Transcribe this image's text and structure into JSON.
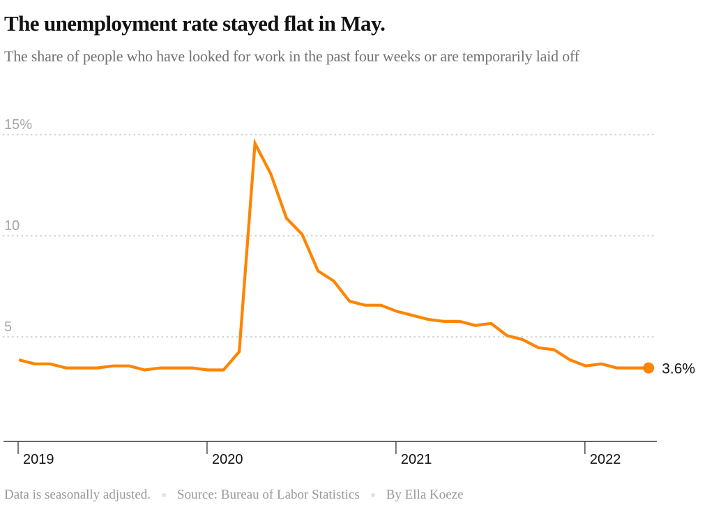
{
  "header": {
    "title": "The unemployment rate stayed flat in May.",
    "subtitle": "The share of people who have looked for work in the past four weeks or are temporarily laid off"
  },
  "footer": {
    "note": "Data is seasonally adjusted.",
    "source": "Source: Bureau of Labor Statistics",
    "byline": "By Ella Koeze"
  },
  "colors": {
    "line": "#ff8400",
    "grid": "#d4d4d4",
    "axis": "#333333"
  },
  "chart_data": {
    "type": "line",
    "title": "The unemployment rate stayed flat in May.",
    "subtitle": "The share of people who have looked for work in the past four weeks or are temporarily laid off",
    "xlabel": "",
    "ylabel": "",
    "ylim": [
      0,
      15
    ],
    "yticks": [
      {
        "value": 15,
        "label": "15%"
      },
      {
        "value": 10,
        "label": "10"
      },
      {
        "value": 5,
        "label": "5"
      }
    ],
    "xticks": [
      {
        "index": 0,
        "label": "2019"
      },
      {
        "index": 12,
        "label": "2020"
      },
      {
        "index": 24,
        "label": "2021"
      },
      {
        "index": 36,
        "label": "2022"
      }
    ],
    "xrange_months": [
      0,
      41
    ],
    "grid": true,
    "grid_style": "dotted horizontal",
    "end_label": "3.6%",
    "series": [
      {
        "name": "Unemployment rate",
        "start": "Jan 2019",
        "frequency": "monthly",
        "x": [
          "Jan 2019",
          "Feb 2019",
          "Mar 2019",
          "Apr 2019",
          "May 2019",
          "Jun 2019",
          "Jul 2019",
          "Aug 2019",
          "Sep 2019",
          "Oct 2019",
          "Nov 2019",
          "Dec 2019",
          "Jan 2020",
          "Feb 2020",
          "Mar 2020",
          "Apr 2020",
          "May 2020",
          "Jun 2020",
          "Jul 2020",
          "Aug 2020",
          "Sep 2020",
          "Oct 2020",
          "Nov 2020",
          "Dec 2020",
          "Jan 2021",
          "Feb 2021",
          "Mar 2021",
          "Apr 2021",
          "May 2021",
          "Jun 2021",
          "Jul 2021",
          "Aug 2021",
          "Sep 2021",
          "Oct 2021",
          "Nov 2021",
          "Dec 2021",
          "Jan 2022",
          "Feb 2022",
          "Mar 2022",
          "Apr 2022",
          "May 2022"
        ],
        "values": [
          4.0,
          3.8,
          3.8,
          3.6,
          3.6,
          3.6,
          3.7,
          3.7,
          3.5,
          3.6,
          3.6,
          3.6,
          3.5,
          3.5,
          4.4,
          14.7,
          13.2,
          11.0,
          10.2,
          8.4,
          7.9,
          6.9,
          6.7,
          6.7,
          6.4,
          6.2,
          6.0,
          5.9,
          5.9,
          5.7,
          5.8,
          5.2,
          5.0,
          4.6,
          4.5,
          4.0,
          3.7,
          3.8,
          3.6,
          3.6,
          3.6
        ]
      }
    ]
  }
}
